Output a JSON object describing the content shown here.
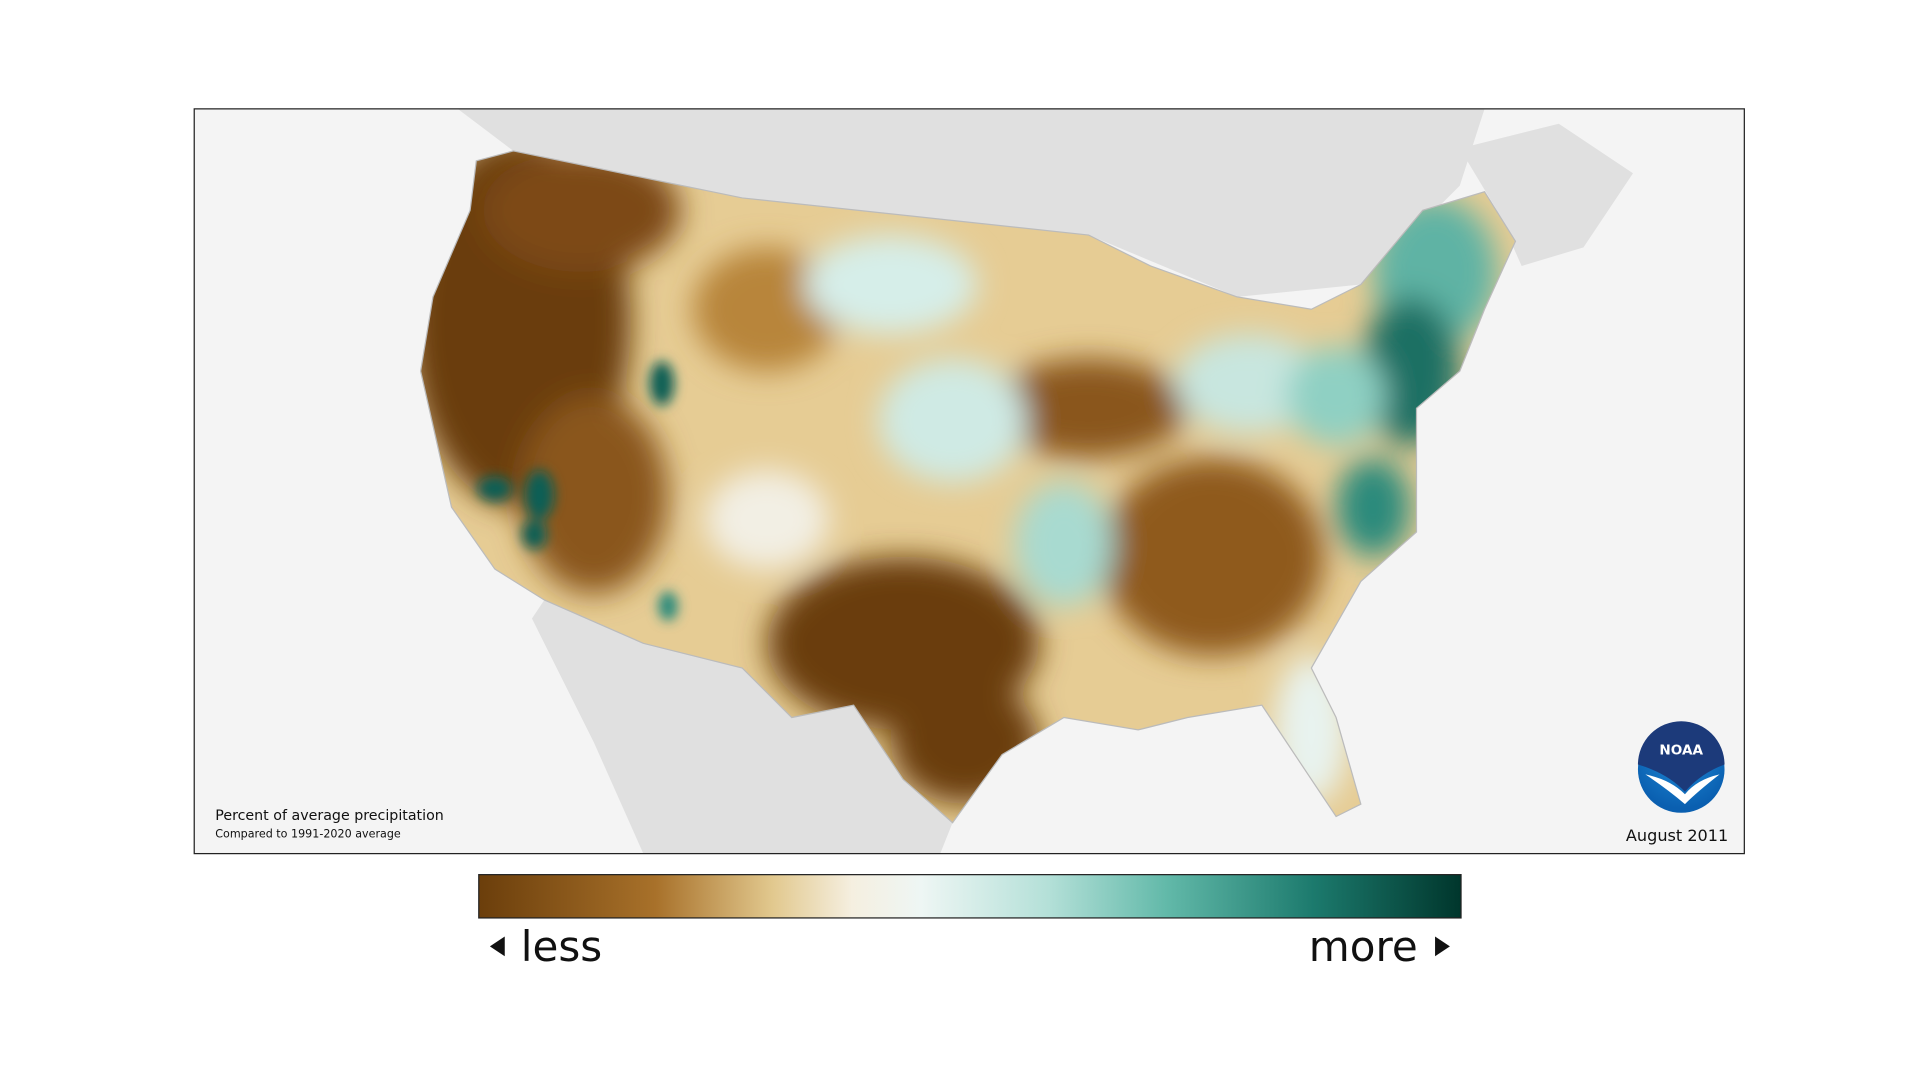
{
  "map": {
    "title": "Percent of average precipitation",
    "subtitle": "Compared to 1991-2020 average",
    "date": "August 2011",
    "logo": "NOAA"
  },
  "legend": {
    "less": "less",
    "more": "more"
  }
}
